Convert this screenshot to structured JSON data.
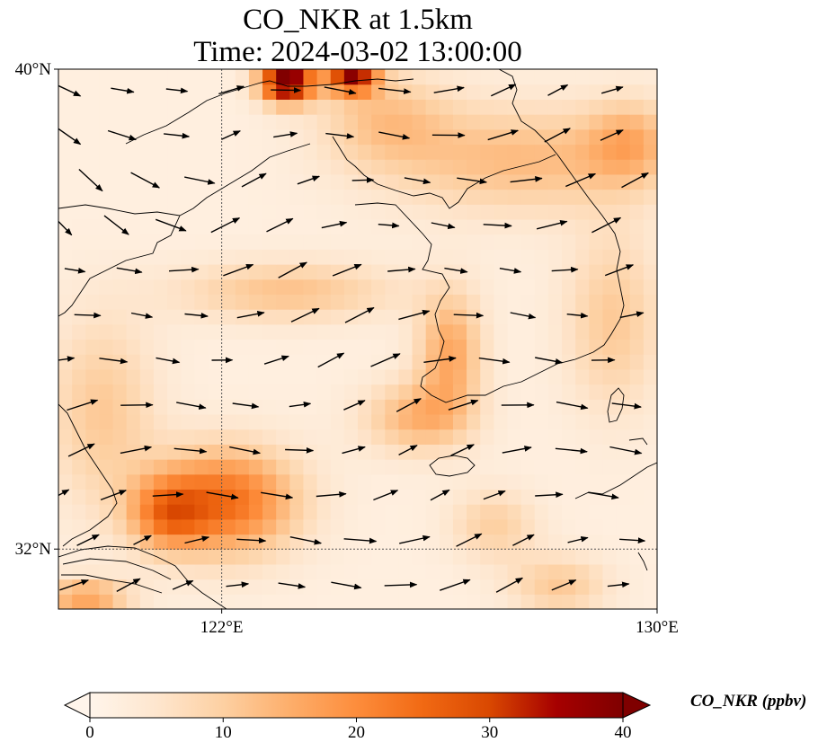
{
  "title": {
    "line1": "CO_NKR at 1.5km",
    "line2": "Time: 2024-03-02 13:00:00"
  },
  "map": {
    "extent": {
      "lon_min": 119,
      "lon_max": 130,
      "lat_min": 31,
      "lat_max": 40
    },
    "lat_ticks": [
      {
        "value": 40,
        "label": "40°N"
      },
      {
        "value": 32,
        "label": "32°N"
      }
    ],
    "lon_ticks": [
      {
        "value": 122,
        "label": "122°E"
      },
      {
        "value": 130,
        "label": "130°E"
      }
    ],
    "gridlines": {
      "lon": [
        122
      ],
      "lat": [
        32
      ]
    },
    "coastline_color": "#000000",
    "vector_color": "#000000"
  },
  "field": {
    "variable": "CO_NKR",
    "units": "ppbv",
    "hotspots": [
      {
        "lon": 123.2,
        "lat": 39.8,
        "value": 40,
        "rx": 0.5,
        "ry": 0.35
      },
      {
        "lon": 124.4,
        "lat": 39.9,
        "value": 33,
        "rx": 0.45,
        "ry": 0.3
      },
      {
        "lon": 122.1,
        "lat": 32.8,
        "value": 22,
        "rx": 1.3,
        "ry": 0.9
      },
      {
        "lon": 121.0,
        "lat": 32.6,
        "value": 16,
        "rx": 0.7,
        "ry": 0.6
      },
      {
        "lon": 123.2,
        "lat": 36.3,
        "value": 10,
        "rx": 2.0,
        "ry": 0.5
      },
      {
        "lon": 126.2,
        "lat": 35.3,
        "value": 14,
        "rx": 0.6,
        "ry": 1.0
      },
      {
        "lon": 125.6,
        "lat": 34.2,
        "value": 12,
        "rx": 1.0,
        "ry": 0.6
      },
      {
        "lon": 127.5,
        "lat": 38.5,
        "value": 11,
        "rx": 2.5,
        "ry": 0.9
      },
      {
        "lon": 129.2,
        "lat": 35.8,
        "value": 9,
        "rx": 0.9,
        "ry": 1.5
      },
      {
        "lon": 129.5,
        "lat": 38.8,
        "value": 10,
        "rx": 0.8,
        "ry": 0.7
      },
      {
        "lon": 119.8,
        "lat": 34.3,
        "value": 9,
        "rx": 1.0,
        "ry": 1.6
      },
      {
        "lon": 128.2,
        "lat": 31.4,
        "value": 9,
        "rx": 0.9,
        "ry": 0.5
      },
      {
        "lon": 127.0,
        "lat": 32.4,
        "value": 8,
        "rx": 0.8,
        "ry": 0.6
      },
      {
        "lon": 119.5,
        "lat": 31.2,
        "value": 15,
        "rx": 0.8,
        "ry": 0.3
      },
      {
        "lon": 125.0,
        "lat": 39.2,
        "value": 9,
        "rx": 1.2,
        "ry": 0.8
      }
    ]
  },
  "colorbar": {
    "title": "CO_NKR (ppbv)",
    "min": 0,
    "max": 40,
    "extend": "both",
    "ticks": [
      {
        "value": 0,
        "label": "0"
      },
      {
        "value": 10,
        "label": "10"
      },
      {
        "value": 20,
        "label": "20"
      },
      {
        "value": 30,
        "label": "30"
      },
      {
        "value": 40,
        "label": "40"
      }
    ],
    "colormap": [
      "#fff5eb",
      "#fee6ce",
      "#fdd0a2",
      "#fdae6b",
      "#fd8d3c",
      "#f16913",
      "#d94801",
      "#a60000",
      "#7f0000"
    ]
  }
}
